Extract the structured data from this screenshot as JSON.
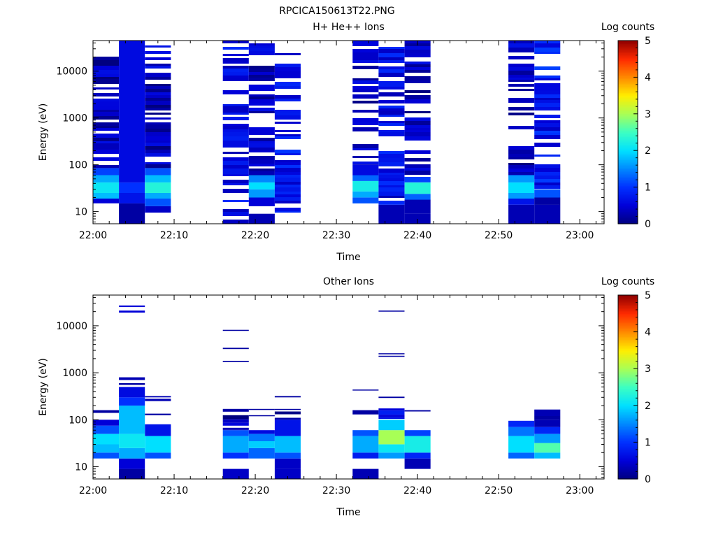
{
  "figure_title": "RPCICA150613T22.PNG",
  "colors": {
    "colormap": [
      "#00007f",
      "#0000d8",
      "#0030ff",
      "#0088ff",
      "#00e0ff",
      "#3cffc2",
      "#a8ff56",
      "#ffee00",
      "#ff8a00",
      "#ff2a00",
      "#8f0000"
    ]
  },
  "chart_data": [
    {
      "type": "heatmap",
      "title": "H+ He++ Ions",
      "xlabel": "Time",
      "ylabel": "Energy (eV)",
      "colorbar_label": "Log counts",
      "x_ticks": [
        "22:00",
        "22:10",
        "22:20",
        "22:30",
        "22:40",
        "22:50",
        "23:00"
      ],
      "x_range_minutes": [
        0,
        63
      ],
      "y_scale": "log",
      "y_ticks": [
        "10",
        "100",
        "1000",
        "10000"
      ],
      "y_range_eV": [
        5.5,
        45000
      ],
      "colorbar_ticks": [
        "0",
        "1",
        "2",
        "3",
        "4",
        "5"
      ],
      "colorbar_range": [
        0,
        5
      ],
      "blocks": [
        {
          "t0": 0.0,
          "t1": 3.2,
          "bands": [
            {
              "e0": 5.5,
              "e1": 15,
              "v": null
            },
            {
              "e0": 15,
              "e1": 19,
              "v": 0.5
            },
            {
              "e0": 19,
              "e1": 25,
              "v": 1.8
            },
            {
              "e0": 25,
              "e1": 42,
              "v": 2.1
            },
            {
              "e0": 42,
              "e1": 60,
              "v": 1.7
            },
            {
              "e0": 60,
              "e1": 85,
              "v": 1.1
            },
            {
              "e0": 85,
              "e1": 45000,
              "v": 0.3,
              "sparse": true
            }
          ]
        },
        {
          "t0": 3.2,
          "t1": 6.4,
          "bands": [
            {
              "e0": 5.5,
              "e1": 15,
              "v": 0.2
            },
            {
              "e0": 15,
              "e1": 25,
              "v": 0.7
            },
            {
              "e0": 25,
              "e1": 42,
              "v": 1.0
            },
            {
              "e0": 42,
              "e1": 45000,
              "v": 0.6
            }
          ]
        },
        {
          "t0": 6.4,
          "t1": 9.6,
          "bands": [
            {
              "e0": 9.5,
              "e1": 13,
              "v": 0.4
            },
            {
              "e0": 13,
              "e1": 19,
              "v": 1.2
            },
            {
              "e0": 19,
              "e1": 25,
              "v": 1.7
            },
            {
              "e0": 25,
              "e1": 42,
              "v": 2.3
            },
            {
              "e0": 42,
              "e1": 60,
              "v": 1.8
            },
            {
              "e0": 60,
              "e1": 85,
              "v": 1.2
            },
            {
              "e0": 85,
              "e1": 45000,
              "v": 0.3,
              "sparse": true
            }
          ]
        },
        {
          "t0": 16.0,
          "t1": 19.2,
          "bands": [
            {
              "e0": 5.5,
              "e1": 45000,
              "v": 0.6,
              "sparse": true
            }
          ]
        },
        {
          "t0": 19.2,
          "t1": 22.4,
          "bands": [
            {
              "e0": 5.5,
              "e1": 9,
              "v": 0.3
            },
            {
              "e0": 13,
              "e1": 20,
              "v": 0.5
            },
            {
              "e0": 20,
              "e1": 30,
              "v": 1.6
            },
            {
              "e0": 30,
              "e1": 42,
              "v": 2.0
            },
            {
              "e0": 42,
              "e1": 60,
              "v": 1.5
            },
            {
              "e0": 60,
              "e1": 45000,
              "v": 0.3,
              "sparse": true
            }
          ]
        },
        {
          "t0": 22.4,
          "t1": 25.6,
          "bands": [
            {
              "e0": 9.5,
              "e1": 45000,
              "v": 0.7,
              "sparse": true
            }
          ]
        },
        {
          "t0": 32.0,
          "t1": 35.2,
          "bands": [
            {
              "e0": 15,
              "e1": 20,
              "v": 1.2
            },
            {
              "e0": 20,
              "e1": 27,
              "v": 1.7
            },
            {
              "e0": 27,
              "e1": 45,
              "v": 2.2
            },
            {
              "e0": 45,
              "e1": 60,
              "v": 1.3
            },
            {
              "e0": 60,
              "e1": 100,
              "v": 0.6
            },
            {
              "e0": 100,
              "e1": 45000,
              "v": 0.3,
              "sparse": true
            }
          ]
        },
        {
          "t0": 35.2,
          "t1": 38.4,
          "bands": [
            {
              "e0": 5.5,
              "e1": 14,
              "v": 0.3
            },
            {
              "e0": 14,
              "e1": 45000,
              "v": 0.6,
              "sparse": true
            }
          ]
        },
        {
          "t0": 38.4,
          "t1": 41.6,
          "bands": [
            {
              "e0": 5.5,
              "e1": 9,
              "v": 0.3
            },
            {
              "e0": 9,
              "e1": 18,
              "v": 0.3
            },
            {
              "e0": 18,
              "e1": 24,
              "v": 1.3
            },
            {
              "e0": 24,
              "e1": 42,
              "v": 2.3
            },
            {
              "e0": 42,
              "e1": 55,
              "v": 1.1
            },
            {
              "e0": 55,
              "e1": 45000,
              "v": 0.3,
              "sparse": true
            }
          ]
        },
        {
          "t0": 51.2,
          "t1": 54.4,
          "bands": [
            {
              "e0": 5.5,
              "e1": 14,
              "v": 0.3
            },
            {
              "e0": 14,
              "e1": 19,
              "v": 0.7
            },
            {
              "e0": 19,
              "e1": 25,
              "v": 1.6
            },
            {
              "e0": 25,
              "e1": 42,
              "v": 2.0
            },
            {
              "e0": 42,
              "e1": 60,
              "v": 1.6
            },
            {
              "e0": 60,
              "e1": 45000,
              "v": 0.3,
              "sparse": true
            }
          ]
        },
        {
          "t0": 54.4,
          "t1": 57.6,
          "bands": [
            {
              "e0": 5.5,
              "e1": 14,
              "v": 0.3
            },
            {
              "e0": 14,
              "e1": 20,
              "v": 0.2
            },
            {
              "e0": 20,
              "e1": 30,
              "v": 1.2
            },
            {
              "e0": 30,
              "e1": 45000,
              "v": 0.7,
              "sparse": true
            }
          ]
        }
      ]
    },
    {
      "type": "heatmap",
      "title": "Other Ions",
      "xlabel": "Time",
      "ylabel": "Energy (eV)",
      "colorbar_label": "Log counts",
      "x_ticks": [
        "22:00",
        "22:10",
        "22:20",
        "22:30",
        "22:40",
        "22:50",
        "23:00"
      ],
      "x_range_minutes": [
        0,
        63
      ],
      "y_scale": "log",
      "y_ticks": [
        "10",
        "100",
        "1000",
        "10000"
      ],
      "y_range_eV": [
        5.5,
        45000
      ],
      "colorbar_ticks": [
        "0",
        "1",
        "2",
        "3",
        "4",
        "5"
      ],
      "colorbar_range": [
        0,
        5
      ],
      "blocks": [
        {
          "t0": 0.0,
          "t1": 3.2,
          "bands": [
            {
              "e0": 15,
              "e1": 20,
              "v": 1.2
            },
            {
              "e0": 20,
              "e1": 30,
              "v": 1.8
            },
            {
              "e0": 30,
              "e1": 50,
              "v": 2.0
            },
            {
              "e0": 50,
              "e1": 75,
              "v": 1.2
            },
            {
              "e0": 75,
              "e1": 100,
              "v": 0.5
            },
            {
              "e0": 140,
              "e1": 160,
              "v": 0.2
            }
          ]
        },
        {
          "t0": 3.2,
          "t1": 6.4,
          "bands": [
            {
              "e0": 5.5,
              "e1": 9,
              "v": 0.2
            },
            {
              "e0": 9,
              "e1": 15,
              "v": 0.5
            },
            {
              "e0": 15,
              "e1": 25,
              "v": 1.7
            },
            {
              "e0": 25,
              "e1": 50,
              "v": 2.1
            },
            {
              "e0": 50,
              "e1": 200,
              "v": 1.8
            },
            {
              "e0": 200,
              "e1": 300,
              "v": 1.0
            },
            {
              "e0": 300,
              "e1": 500,
              "v": 0.6
            },
            {
              "e0": 550,
              "e1": 600,
              "v": 0.2
            },
            {
              "e0": 700,
              "e1": 800,
              "v": 0.3
            },
            {
              "e0": 19000,
              "e1": 21000,
              "v": 0.5
            },
            {
              "e0": 25000,
              "e1": 27000,
              "v": 0.5
            }
          ]
        },
        {
          "t0": 6.4,
          "t1": 9.6,
          "bands": [
            {
              "e0": 15,
              "e1": 20,
              "v": 1.2
            },
            {
              "e0": 20,
              "e1": 45,
              "v": 2.0
            },
            {
              "e0": 45,
              "e1": 80,
              "v": 0.7
            },
            {
              "e0": 125,
              "e1": 135,
              "v": 0.2
            },
            {
              "e0": 250,
              "e1": 280,
              "v": 0.3
            },
            {
              "e0": 300,
              "e1": 320,
              "v": 0.3
            }
          ]
        },
        {
          "t0": 16.0,
          "t1": 19.2,
          "bands": [
            {
              "e0": 5.5,
              "e1": 9,
              "v": 0.4
            },
            {
              "e0": 15,
              "e1": 20,
              "v": 1.0
            },
            {
              "e0": 20,
              "e1": 45,
              "v": 1.7
            },
            {
              "e0": 45,
              "e1": 60,
              "v": 1.2
            },
            {
              "e0": 60,
              "e1": 170,
              "v": 0.2,
              "sparse": true
            },
            {
              "e0": 1700,
              "e1": 1800,
              "v": 0.2
            },
            {
              "e0": 3200,
              "e1": 3400,
              "v": 0.2
            },
            {
              "e0": 7900,
              "e1": 8200,
              "v": 0.2
            }
          ]
        },
        {
          "t0": 19.2,
          "t1": 22.4,
          "bands": [
            {
              "e0": 15,
              "e1": 25,
              "v": 1.3
            },
            {
              "e0": 25,
              "e1": 35,
              "v": 1.9
            },
            {
              "e0": 35,
              "e1": 50,
              "v": 1.4
            },
            {
              "e0": 50,
              "e1": 60,
              "v": 0.6
            },
            {
              "e0": 120,
              "e1": 125,
              "v": 0.2
            },
            {
              "e0": 165,
              "e1": 170,
              "v": 0.2
            }
          ]
        },
        {
          "t0": 22.4,
          "t1": 25.6,
          "bands": [
            {
              "e0": 5.5,
              "e1": 9,
              "v": 0.4
            },
            {
              "e0": 9,
              "e1": 15,
              "v": 0.4
            },
            {
              "e0": 15,
              "e1": 20,
              "v": 1.2
            },
            {
              "e0": 20,
              "e1": 45,
              "v": 1.8
            },
            {
              "e0": 45,
              "e1": 100,
              "v": 0.7
            },
            {
              "e0": 100,
              "e1": 150,
              "v": 0.3,
              "sparse": true
            },
            {
              "e0": 165,
              "e1": 170,
              "v": 0.2
            },
            {
              "e0": 300,
              "e1": 320,
              "v": 0.2
            }
          ]
        },
        {
          "t0": 32.0,
          "t1": 35.2,
          "bands": [
            {
              "e0": 5.5,
              "e1": 9,
              "v": 0.3
            },
            {
              "e0": 15,
              "e1": 20,
              "v": 0.8
            },
            {
              "e0": 20,
              "e1": 45,
              "v": 1.7
            },
            {
              "e0": 45,
              "e1": 60,
              "v": 1.2
            },
            {
              "e0": 130,
              "e1": 160,
              "v": 0.2
            },
            {
              "e0": 420,
              "e1": 440,
              "v": 0.2
            }
          ]
        },
        {
          "t0": 35.2,
          "t1": 38.4,
          "bands": [
            {
              "e0": 15,
              "e1": 20,
              "v": 1.6
            },
            {
              "e0": 20,
              "e1": 30,
              "v": 2.1
            },
            {
              "e0": 30,
              "e1": 60,
              "v": 3.0
            },
            {
              "e0": 60,
              "e1": 100,
              "v": 1.9
            },
            {
              "e0": 100,
              "e1": 200,
              "v": 0.6,
              "sparse": true
            },
            {
              "e0": 290,
              "e1": 310,
              "v": 0.2
            },
            {
              "e0": 2200,
              "e1": 2300,
              "v": 0.2
            },
            {
              "e0": 2500,
              "e1": 2600,
              "v": 0.2
            },
            {
              "e0": 20000,
              "e1": 21000,
              "v": 0.2
            }
          ]
        },
        {
          "t0": 38.4,
          "t1": 41.6,
          "bands": [
            {
              "e0": 9,
              "e1": 15,
              "v": 0.3
            },
            {
              "e0": 15,
              "e1": 20,
              "v": 0.9
            },
            {
              "e0": 20,
              "e1": 45,
              "v": 2.2
            },
            {
              "e0": 45,
              "e1": 60,
              "v": 1.1
            },
            {
              "e0": 150,
              "e1": 160,
              "v": 0.2
            }
          ]
        },
        {
          "t0": 51.2,
          "t1": 54.4,
          "bands": [
            {
              "e0": 15,
              "e1": 20,
              "v": 1.3
            },
            {
              "e0": 20,
              "e1": 45,
              "v": 2.0
            },
            {
              "e0": 45,
              "e1": 70,
              "v": 1.4
            },
            {
              "e0": 70,
              "e1": 95,
              "v": 0.9
            }
          ]
        },
        {
          "t0": 54.4,
          "t1": 57.6,
          "bands": [
            {
              "e0": 15,
              "e1": 20,
              "v": 1.8
            },
            {
              "e0": 20,
              "e1": 32,
              "v": 2.6
            },
            {
              "e0": 32,
              "e1": 50,
              "v": 1.6
            },
            {
              "e0": 50,
              "e1": 70,
              "v": 0.9
            },
            {
              "e0": 70,
              "e1": 100,
              "v": 0.3
            },
            {
              "e0": 100,
              "e1": 120,
              "v": 0.2
            },
            {
              "e0": 120,
              "e1": 165,
              "v": 0.3
            }
          ]
        }
      ]
    }
  ]
}
